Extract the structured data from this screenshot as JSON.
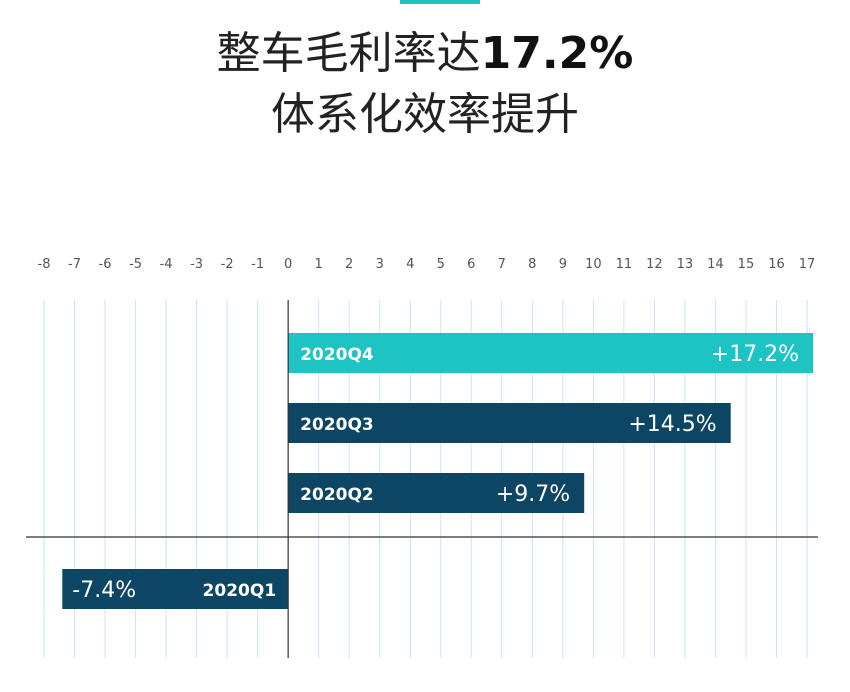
{
  "header": {
    "title_prefix": "整车毛利率达",
    "title_highlight": "17.2%",
    "subtitle": "体系化效率提升"
  },
  "colors": {
    "accent": "#1ec4c4",
    "bar": "#0c4664",
    "gridline": "#c9e6f0",
    "tick_text": "#555555",
    "axis": "#333333"
  },
  "chart_data": {
    "type": "bar",
    "orientation": "horizontal",
    "categories": [
      "2020Q4",
      "2020Q3",
      "2020Q2",
      "2020Q1"
    ],
    "values": [
      17.2,
      14.5,
      9.7,
      -7.4
    ],
    "value_labels": [
      "+17.2%",
      "+14.5%",
      "+9.7%",
      "-7.4%"
    ],
    "highlight_category": "2020Q4",
    "xlim": [
      -8,
      17
    ],
    "xticks": [
      -8,
      -7,
      -6,
      -5,
      -4,
      -3,
      -2,
      -1,
      0,
      1,
      2,
      3,
      4,
      5,
      6,
      7,
      8,
      9,
      10,
      11,
      12,
      13,
      14,
      15,
      16,
      17
    ],
    "xtick_position": "top",
    "grid": true,
    "title": "",
    "xlabel": "",
    "ylabel": ""
  }
}
